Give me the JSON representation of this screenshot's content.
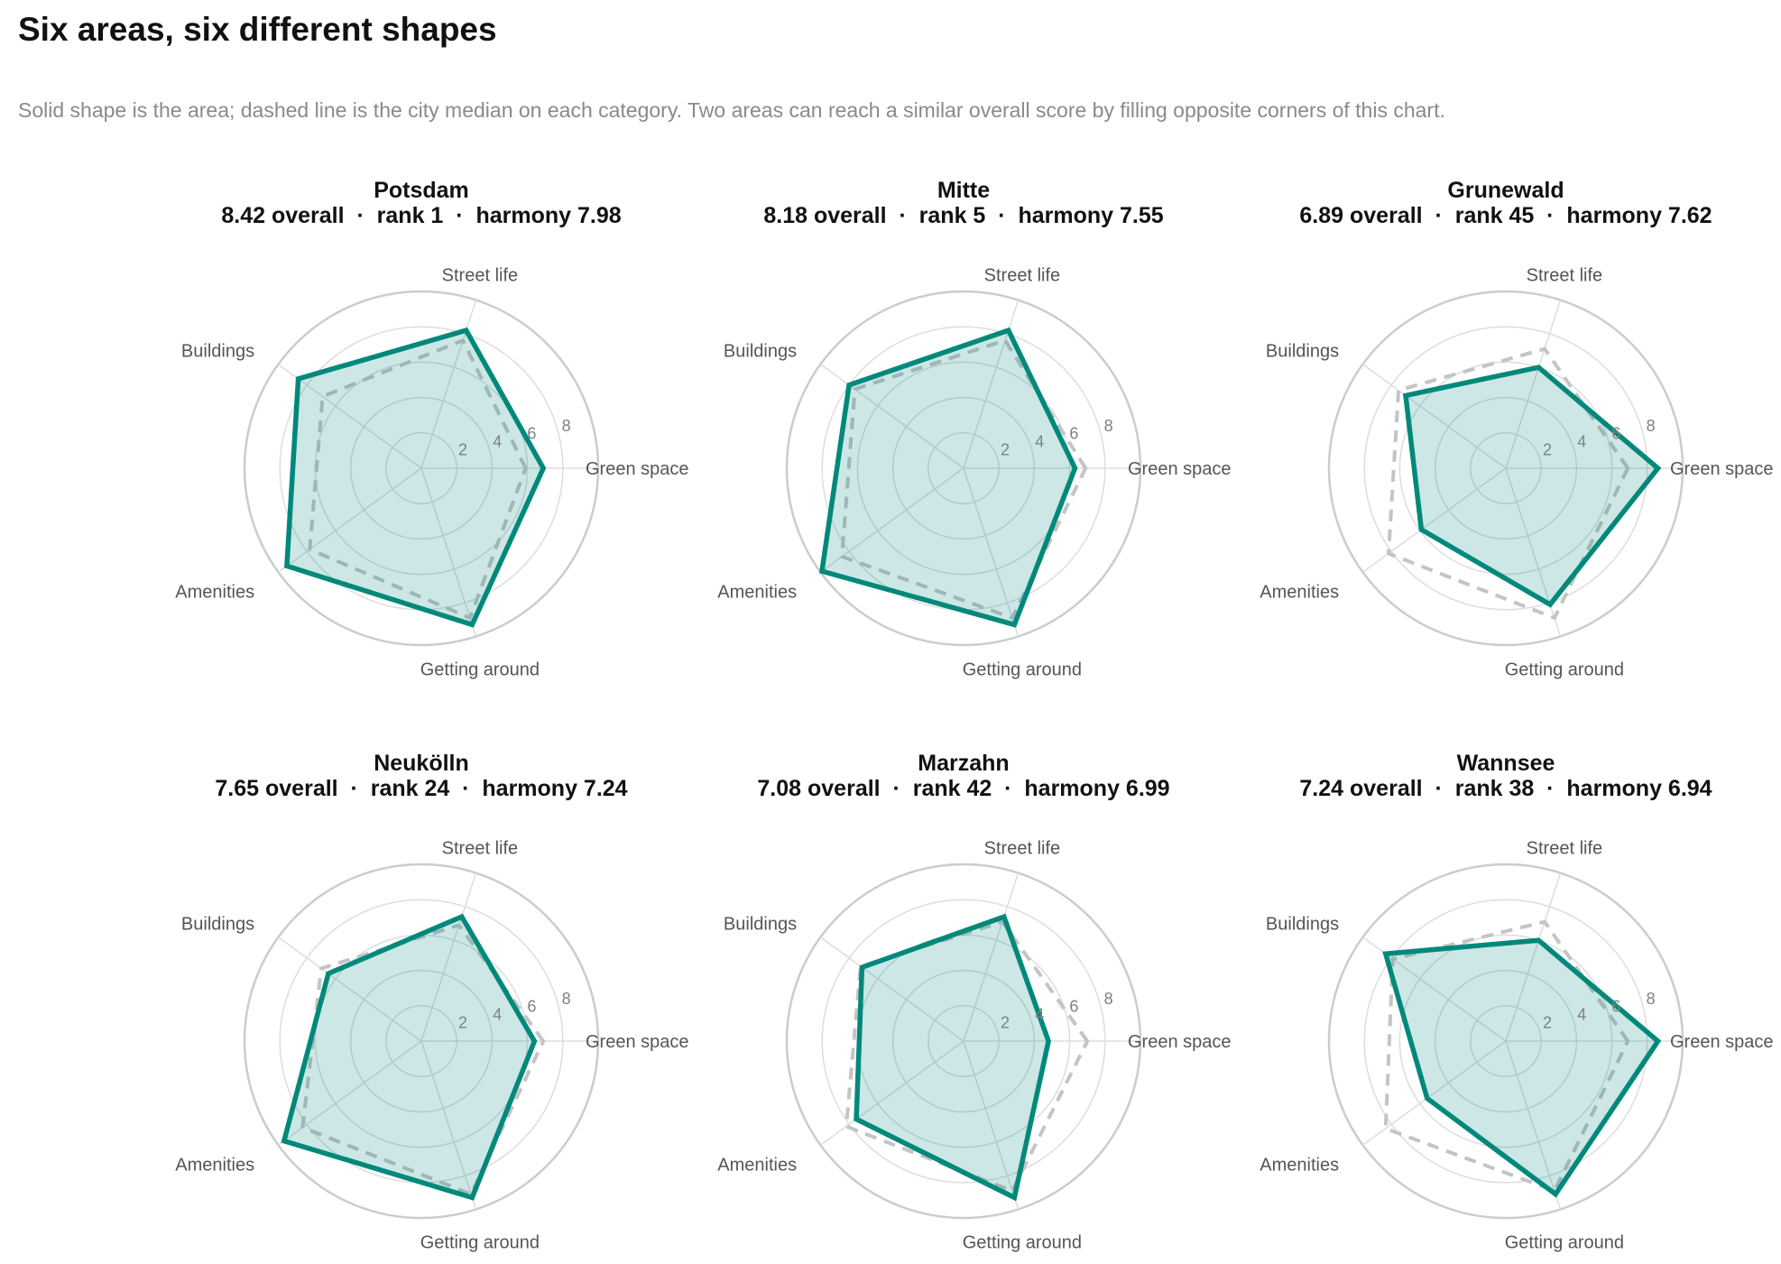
{
  "title": "Six areas, six different shapes",
  "subtitle": "Solid shape is the area; dashed line is the city median on each category. Two areas can reach a similar overall score by filling opposite corners of this chart.",
  "colors": {
    "area_stroke": "#00897b",
    "area_fill": "#00897b",
    "median": "#c4c4c4",
    "grid": "#dddddd",
    "outer_ring": "#cccccc",
    "category_text": "#555555",
    "tick_text": "#808080"
  },
  "chart_data": [
    {
      "type": "radar",
      "title": "Potsdam",
      "subtitle": "8.42 overall  ·  rank 1  ·  harmony 7.98",
      "categories": [
        "Green space",
        "Street life",
        "Buildings",
        "Amenities",
        "Getting around"
      ],
      "rlim": [
        0,
        10
      ],
      "rticks": [
        "2",
        "4",
        "6",
        "8"
      ],
      "series": [
        {
          "role": "area",
          "values": [
            6.9,
            8.2,
            8.6,
            9.4,
            9.3
          ]
        },
        {
          "role": "median",
          "values": [
            5.9,
            7.6,
            6.9,
            7.8,
            8.9
          ]
        }
      ]
    },
    {
      "type": "radar",
      "title": "Mitte",
      "subtitle": "8.18 overall  ·  rank 5  ·  harmony 7.55",
      "categories": [
        "Green space",
        "Street life",
        "Buildings",
        "Amenities",
        "Getting around"
      ],
      "rlim": [
        0,
        10
      ],
      "rticks": [
        "2",
        "4",
        "6",
        "8"
      ],
      "series": [
        {
          "role": "area",
          "values": [
            6.3,
            8.2,
            8.0,
            9.9,
            9.3
          ]
        },
        {
          "role": "median",
          "values": [
            6.9,
            7.6,
            7.6,
            8.5,
            8.9
          ]
        }
      ]
    },
    {
      "type": "radar",
      "title": "Grunewald",
      "subtitle": "6.89 overall  ·  rank 45  ·  harmony 7.62",
      "categories": [
        "Green space",
        "Street life",
        "Buildings",
        "Amenities",
        "Getting around"
      ],
      "rlim": [
        0,
        10
      ],
      "rticks": [
        "2",
        "4",
        "6",
        "8"
      ],
      "series": [
        {
          "role": "area",
          "values": [
            8.6,
            6.0,
            7.0,
            5.9,
            8.1
          ]
        },
        {
          "role": "median",
          "values": [
            6.9,
            7.1,
            7.5,
            8.2,
            8.9
          ]
        }
      ]
    },
    {
      "type": "radar",
      "title": "Neukölln",
      "subtitle": "7.65 overall  ·  rank 24  ·  harmony 7.24",
      "categories": [
        "Green space",
        "Street life",
        "Buildings",
        "Amenities",
        "Getting around"
      ],
      "rlim": [
        0,
        10
      ],
      "rticks": [
        "2",
        "4",
        "6",
        "8"
      ],
      "series": [
        {
          "role": "area",
          "values": [
            6.4,
            7.4,
            6.5,
            9.6,
            9.3
          ]
        },
        {
          "role": "median",
          "values": [
            6.9,
            6.9,
            7.0,
            8.3,
            9.1
          ]
        }
      ]
    },
    {
      "type": "radar",
      "title": "Marzahn",
      "subtitle": "7.08 overall  ·  rank 42  ·  harmony 6.99",
      "categories": [
        "Green space",
        "Street life",
        "Buildings",
        "Amenities",
        "Getting around"
      ],
      "rlim": [
        0,
        10
      ],
      "rticks": [
        "2",
        "4",
        "6",
        "8"
      ],
      "series": [
        {
          "role": "area",
          "values": [
            4.8,
            7.4,
            7.1,
            7.5,
            9.3
          ]
        },
        {
          "role": "median",
          "values": [
            7.0,
            7.1,
            7.2,
            8.2,
            8.9
          ]
        }
      ]
    },
    {
      "type": "radar",
      "title": "Wannsee",
      "subtitle": "7.24 overall  ·  rank 38  ·  harmony 6.94",
      "categories": [
        "Green space",
        "Street life",
        "Buildings",
        "Amenities",
        "Getting around"
      ],
      "rlim": [
        0,
        10
      ],
      "rticks": [
        "2",
        "4",
        "6",
        "8"
      ],
      "series": [
        {
          "role": "area",
          "values": [
            8.6,
            6.0,
            8.4,
            5.5,
            9.1
          ]
        },
        {
          "role": "median",
          "values": [
            6.9,
            7.1,
            7.9,
            8.4,
            8.9
          ]
        }
      ]
    }
  ]
}
